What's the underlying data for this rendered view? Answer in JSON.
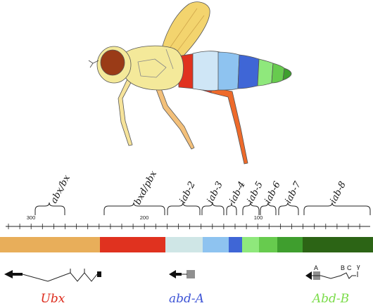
{
  "regions": [
    {
      "name": "abx/bx"
    },
    {
      "name": "bxd/pbx"
    },
    {
      "name": "iab-2"
    },
    {
      "name": "iab-3"
    },
    {
      "name": "iab-4"
    },
    {
      "name": "iab-5"
    },
    {
      "name": "iab-6"
    },
    {
      "name": "iab-7"
    },
    {
      "name": "iab-8"
    }
  ],
  "scale": {
    "tick_labels": [
      "300",
      "200",
      "100"
    ]
  },
  "color_bar": [
    {
      "segment": "Ubx-abx/bx",
      "color": "#e8ae5a"
    },
    {
      "segment": "bxd/pbx",
      "color": "#e0321f"
    },
    {
      "segment": "iab-2",
      "color": "#cfe6e6"
    },
    {
      "segment": "iab-3",
      "color": "#8ec3f0"
    },
    {
      "segment": "iab-4",
      "color": "#3f66d6"
    },
    {
      "segment": "iab-5",
      "color": "#8fe87c"
    },
    {
      "segment": "iab-6",
      "color": "#67cb4e"
    },
    {
      "segment": "iab-7",
      "color": "#3f9e2e"
    },
    {
      "segment": "iab-8",
      "color": "#2c6415"
    }
  ],
  "genes": [
    {
      "name": "Ubx",
      "color": "#dd2a1b"
    },
    {
      "name": "abd-A",
      "color": "#3f55d6"
    },
    {
      "name": "Abd-B",
      "color": "#7bdc4a"
    }
  ],
  "abdb_promoters": [
    "A",
    "B",
    "C",
    "γ"
  ],
  "fly_colors": {
    "head": "#f4e99a",
    "eye": "#9a3b17",
    "thorax": "#f4e99a",
    "wing": "#f3d46e",
    "leg_front": "#f6e39a",
    "leg_hind": "#ee6a2a",
    "abdomen": [
      "#e0321f",
      "#cfe6f6",
      "#8ec3f0",
      "#3f66d6",
      "#8fe87c",
      "#67cb4e",
      "#3f9e2e"
    ]
  }
}
